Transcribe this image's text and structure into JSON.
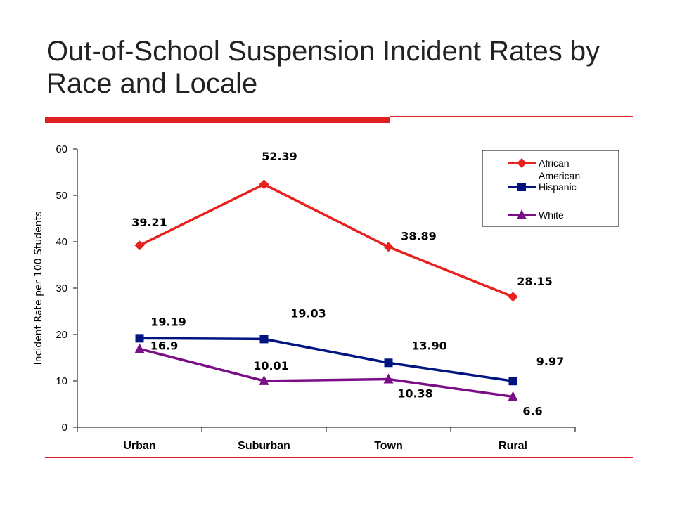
{
  "slide": {
    "title": "Out-of-School Suspension Incident Rates by Race and Locale",
    "accent_color": "#e02020",
    "title_color": "#222222"
  },
  "chart_data": {
    "type": "line",
    "categories": [
      "Urban",
      "Suburban",
      "Town",
      "Rural"
    ],
    "ylabel": "Incident Rate per 100 Students",
    "xlabel": "",
    "ylim": [
      0,
      60
    ],
    "yticks": [
      0,
      10,
      20,
      30,
      40,
      50,
      60
    ],
    "grid": false,
    "legend_position": "top-right",
    "series": [
      {
        "name": "African American",
        "values": [
          39.21,
          52.39,
          38.89,
          28.15
        ],
        "labels": [
          "39.21",
          "52.39",
          "38.89",
          "28.15"
        ],
        "color": "#e8201e",
        "marker": "diamond"
      },
      {
        "name": "Hispanic",
        "values": [
          19.19,
          19.03,
          13.9,
          9.97
        ],
        "labels": [
          "19.19",
          "19.03",
          "13.90",
          "9.97"
        ],
        "color": "#00157f",
        "marker": "square"
      },
      {
        "name": "White",
        "values": [
          16.9,
          10.01,
          10.38,
          6.6
        ],
        "labels": [
          "16.9",
          "10.01",
          "10.38",
          "6.6"
        ],
        "color": "#7b0d86",
        "marker": "triangle"
      }
    ]
  }
}
